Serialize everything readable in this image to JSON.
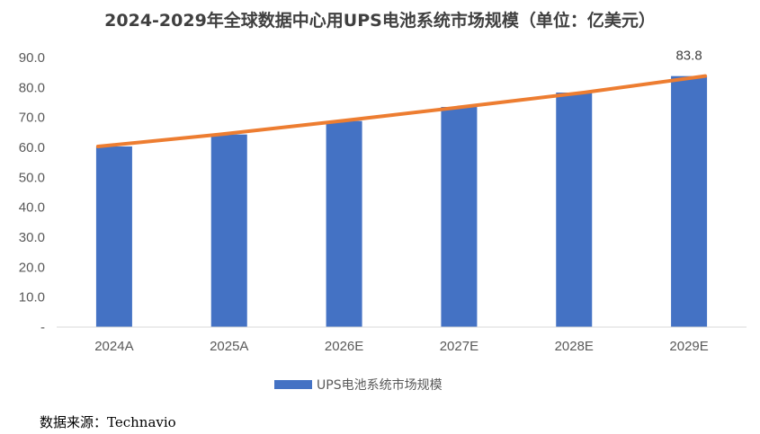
{
  "chart_data": {
    "type": "bar",
    "title": "2024-2029年全球数据中心用UPS电池系统市场规模（单位：亿美元）",
    "categories": [
      "2024A",
      "2025A",
      "2026E",
      "2027E",
      "2028E",
      "2029E"
    ],
    "series": [
      {
        "name": "UPS电池系统市场规模",
        "values": [
          60.3,
          64.3,
          68.8,
          73.5,
          78.3,
          83.8
        ],
        "color": "#4472c4"
      }
    ],
    "trendline": {
      "type": "line",
      "color": "#ed7d31",
      "values": [
        60.3,
        64.3,
        68.8,
        73.5,
        78.3,
        83.8
      ]
    },
    "data_labels": [
      {
        "index": 5,
        "text": "83.8"
      }
    ],
    "yticks": [
      "-",
      "10.0",
      "20.0",
      "30.0",
      "40.0",
      "50.0",
      "60.0",
      "70.0",
      "80.0",
      "90.0"
    ],
    "ylim": [
      0,
      90
    ],
    "grid": false,
    "legend_position": "bottom"
  },
  "source": "数据来源：Technavio"
}
